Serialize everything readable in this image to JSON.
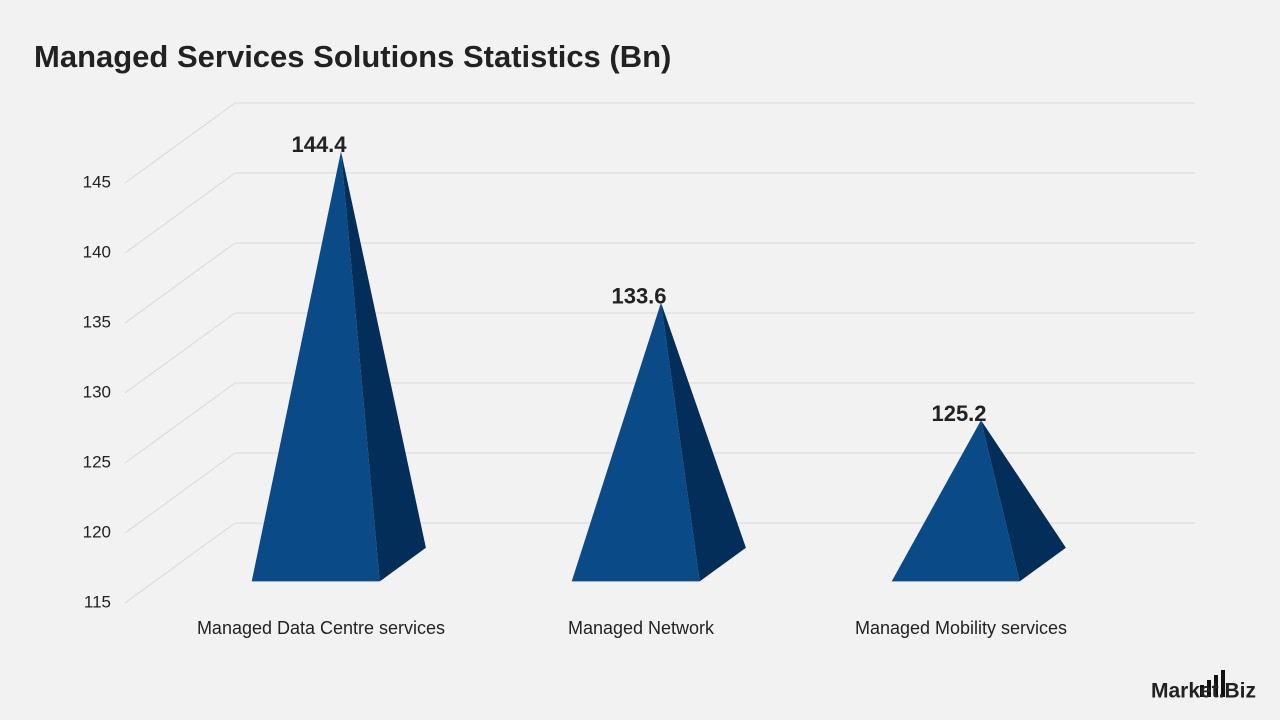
{
  "chart_data": {
    "type": "pyramid3d",
    "title": "Managed Services Solutions Statistics (Bn)",
    "categories": [
      "Managed Data Centre services",
      "Managed Network",
      "Managed Mobility services"
    ],
    "values": [
      144.4,
      133.6,
      125.2
    ],
    "color": "#0a4a87",
    "side_color": "#022e59",
    "ylim": [
      115,
      145
    ],
    "yticks": [
      115,
      120,
      125,
      130,
      135,
      140,
      145
    ],
    "grid": true,
    "logo": "Market.Biz"
  }
}
